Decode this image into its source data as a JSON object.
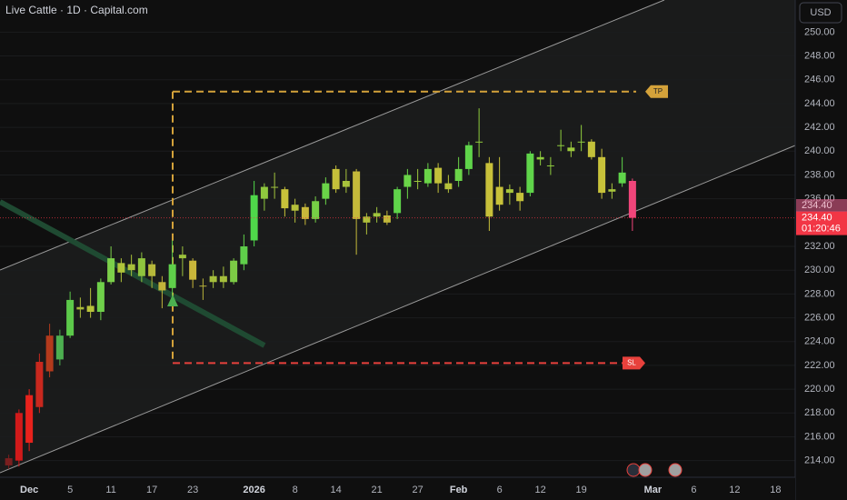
{
  "chart_data": {
    "type": "candlestick",
    "title": "Live Cattle · 1D · Capital.com",
    "currency": "USD",
    "categories": [
      null,
      null,
      "Dec",
      null,
      null,
      null,
      "5",
      null,
      null,
      null,
      "11",
      null,
      null,
      null,
      "17",
      null,
      null,
      null,
      "23",
      null,
      null,
      null,
      null,
      null,
      "2026",
      null,
      null,
      null,
      "8",
      null,
      null,
      null,
      "14",
      null,
      null,
      null,
      "21",
      null,
      null,
      null,
      "27",
      null,
      null,
      null,
      "Feb",
      null,
      null,
      null,
      "6",
      null,
      null,
      null,
      "12",
      null,
      null,
      null,
      "19",
      null,
      null,
      null,
      null,
      null,
      null,
      "Mar",
      null,
      null,
      null,
      "6",
      null,
      null,
      null,
      "12",
      null,
      null,
      null,
      "18"
    ],
    "open": [
      214.2,
      218,
      219.5,
      222.3,
      224.5,
      222.5,
      224.5,
      226.9,
      226.5,
      226.5,
      229,
      229.8,
      230.5,
      229.5,
      230.5,
      229,
      228.5,
      231.3,
      230.8,
      228.7,
      229,
      229.5,
      229,
      230.5,
      232.5,
      236,
      237,
      236.8,
      235.5,
      235.3,
      234.3,
      236,
      238.5,
      237.5,
      238.3,
      234.5,
      234.8,
      234.6,
      234.8,
      237,
      237.5,
      237.3,
      238.6,
      237.3,
      237.5,
      238.5,
      240.8,
      239,
      237,
      236.8,
      236.5,
      236.5,
      239.5,
      238.8,
      240.5,
      240,
      240.8,
      240.8,
      239.5,
      236.8,
      237.3,
      237.5,
      null,
      null,
      null,
      null,
      null,
      null,
      null,
      null,
      null,
      null,
      null,
      null,
      null,
      null
    ],
    "high": [
      214.5,
      218.3,
      220,
      223,
      225.5,
      225,
      228.2,
      227.7,
      228.5,
      229.3,
      232,
      231,
      231.3,
      231.5,
      230.8,
      229.5,
      232.5,
      232,
      231,
      229.3,
      230,
      230.3,
      231,
      233,
      237.5,
      237.3,
      238.2,
      237,
      236,
      235.6,
      236.2,
      237.8,
      238.8,
      238.5,
      238.5,
      234.8,
      235.3,
      235,
      237,
      238.5,
      238.5,
      239,
      239,
      238,
      239.5,
      240.8,
      243.6,
      239.5,
      239.5,
      237.2,
      237,
      240,
      240,
      239.5,
      241.8,
      240.8,
      242.2,
      241,
      240.2,
      237.3,
      239.5,
      237.7,
      null,
      null,
      null,
      null,
      null,
      null,
      null,
      null,
      null,
      null,
      null,
      null,
      null,
      null
    ],
    "low": [
      213.3,
      213.5,
      214.8,
      218,
      221,
      222,
      224.3,
      226,
      226,
      225.8,
      228.8,
      229,
      229.5,
      229,
      228.5,
      226.8,
      227.5,
      229.5,
      228.5,
      227.5,
      228.5,
      228.5,
      228.8,
      230,
      232,
      235,
      236,
      234.5,
      234,
      233.8,
      234,
      235.5,
      236.5,
      236.5,
      231.3,
      233,
      234,
      233.8,
      234.3,
      236,
      236.8,
      237,
      236.5,
      236.5,
      237,
      238,
      239.5,
      233.3,
      235,
      235.5,
      235,
      236.2,
      238.8,
      238,
      240,
      239.5,
      240,
      239.3,
      236,
      236,
      237,
      233.3,
      null,
      null,
      null,
      null,
      null,
      null,
      null,
      null,
      null,
      null,
      null,
      null,
      null,
      null
    ],
    "close": [
      213.6,
      214,
      215.5,
      218.5,
      221.5,
      224.5,
      227.5,
      226.7,
      227,
      229,
      231,
      230.6,
      230,
      231,
      229.5,
      228.3,
      230.5,
      231,
      229.2,
      228.7,
      229.5,
      229,
      230.8,
      232,
      236.3,
      237,
      237,
      235.2,
      235,
      234.3,
      235.8,
      237.3,
      236.8,
      237,
      234.3,
      234,
      234.5,
      234,
      236.8,
      238,
      237.5,
      238.5,
      237.3,
      236.8,
      238.5,
      240.5,
      240.8,
      234.5,
      235.5,
      236.5,
      235.8,
      239.8,
      239.3,
      238.8,
      240.5,
      240.3,
      240.8,
      239.5,
      236.5,
      236.6,
      238.2,
      234.4,
      null,
      null,
      null,
      null,
      null,
      null,
      null,
      null,
      null,
      null,
      null,
      null,
      null,
      null
    ],
    "colors": [
      "#7a1f1f",
      "#d11a1a",
      "#e8221c",
      "#c8281e",
      "#b33a1c",
      "#4caf50",
      "#5cc94a",
      "#a8b83a",
      "#b8c23a",
      "#6fd04a",
      "#7cd04a",
      "#b0c43a",
      "#a9c03a",
      "#8fc43e",
      "#b6b83a",
      "#c2b43a",
      "#5fcf4a",
      "#9cc23c",
      "#c9b63a",
      "#b8b23a",
      "#a5bf3c",
      "#a5bf3c",
      "#7ccb45",
      "#5fcf4a",
      "#4fd84a",
      "#8fc83e",
      "#a0c43c",
      "#c8c23a",
      "#b5bf3a",
      "#c8b83a",
      "#76cf45",
      "#6ad448",
      "#c5c03a",
      "#a8c23c",
      "#c4b93a",
      "#b0bf3a",
      "#a0c43c",
      "#c2b83a",
      "#5fd44a",
      "#6ad448",
      "#9cc83c",
      "#6ad448",
      "#c2c03a",
      "#b5c03a",
      "#6ad448",
      "#5fd44a",
      "#8fcc3e",
      "#c8c03a",
      "#c8c23a",
      "#a8c63c",
      "#c4c03a",
      "#5fd44a",
      "#8fcc3e",
      "#8fcc3e",
      "#8fcc3e",
      "#9cc83c",
      "#8fcc3e",
      "#c2c03a",
      "#c8c23a",
      "#a8c63c",
      "#5fd44a",
      "#f0457a",
      null,
      null,
      null,
      null,
      null,
      null,
      null,
      null,
      null,
      null,
      null,
      null,
      null,
      null
    ],
    "ylim": [
      212.6,
      252.7
    ],
    "yticks": [
      {
        "value": 214,
        "label": "214.00"
      },
      {
        "value": 216,
        "label": "216.00"
      },
      {
        "value": 218,
        "label": "218.00"
      },
      {
        "value": 220,
        "label": "220.00"
      },
      {
        "value": 222,
        "label": "222.00"
      },
      {
        "value": 224,
        "label": "224.00"
      },
      {
        "value": 226,
        "label": "226.00"
      },
      {
        "value": 228,
        "label": "228.00"
      },
      {
        "value": 230,
        "label": "230.00"
      },
      {
        "value": 232,
        "label": "232.00"
      },
      {
        "value": 236,
        "label": "236.00"
      },
      {
        "value": 238,
        "label": "238.00"
      },
      {
        "value": 240,
        "label": "240.00"
      },
      {
        "value": 242,
        "label": "242.00"
      },
      {
        "value": 244,
        "label": "244.00"
      },
      {
        "value": 246,
        "label": "246.00"
      },
      {
        "value": 248,
        "label": "248.00"
      },
      {
        "value": 250,
        "label": "250.00"
      }
    ],
    "take_profit": {
      "value": 245,
      "label": "TP",
      "color": "#d4a23a"
    },
    "stop_loss": {
      "value": 222.2,
      "label": "SL",
      "color": "#e8413c"
    },
    "last_price_label": "234.40",
    "previous_price_label": "234.40",
    "countdown": "01:20:46"
  }
}
